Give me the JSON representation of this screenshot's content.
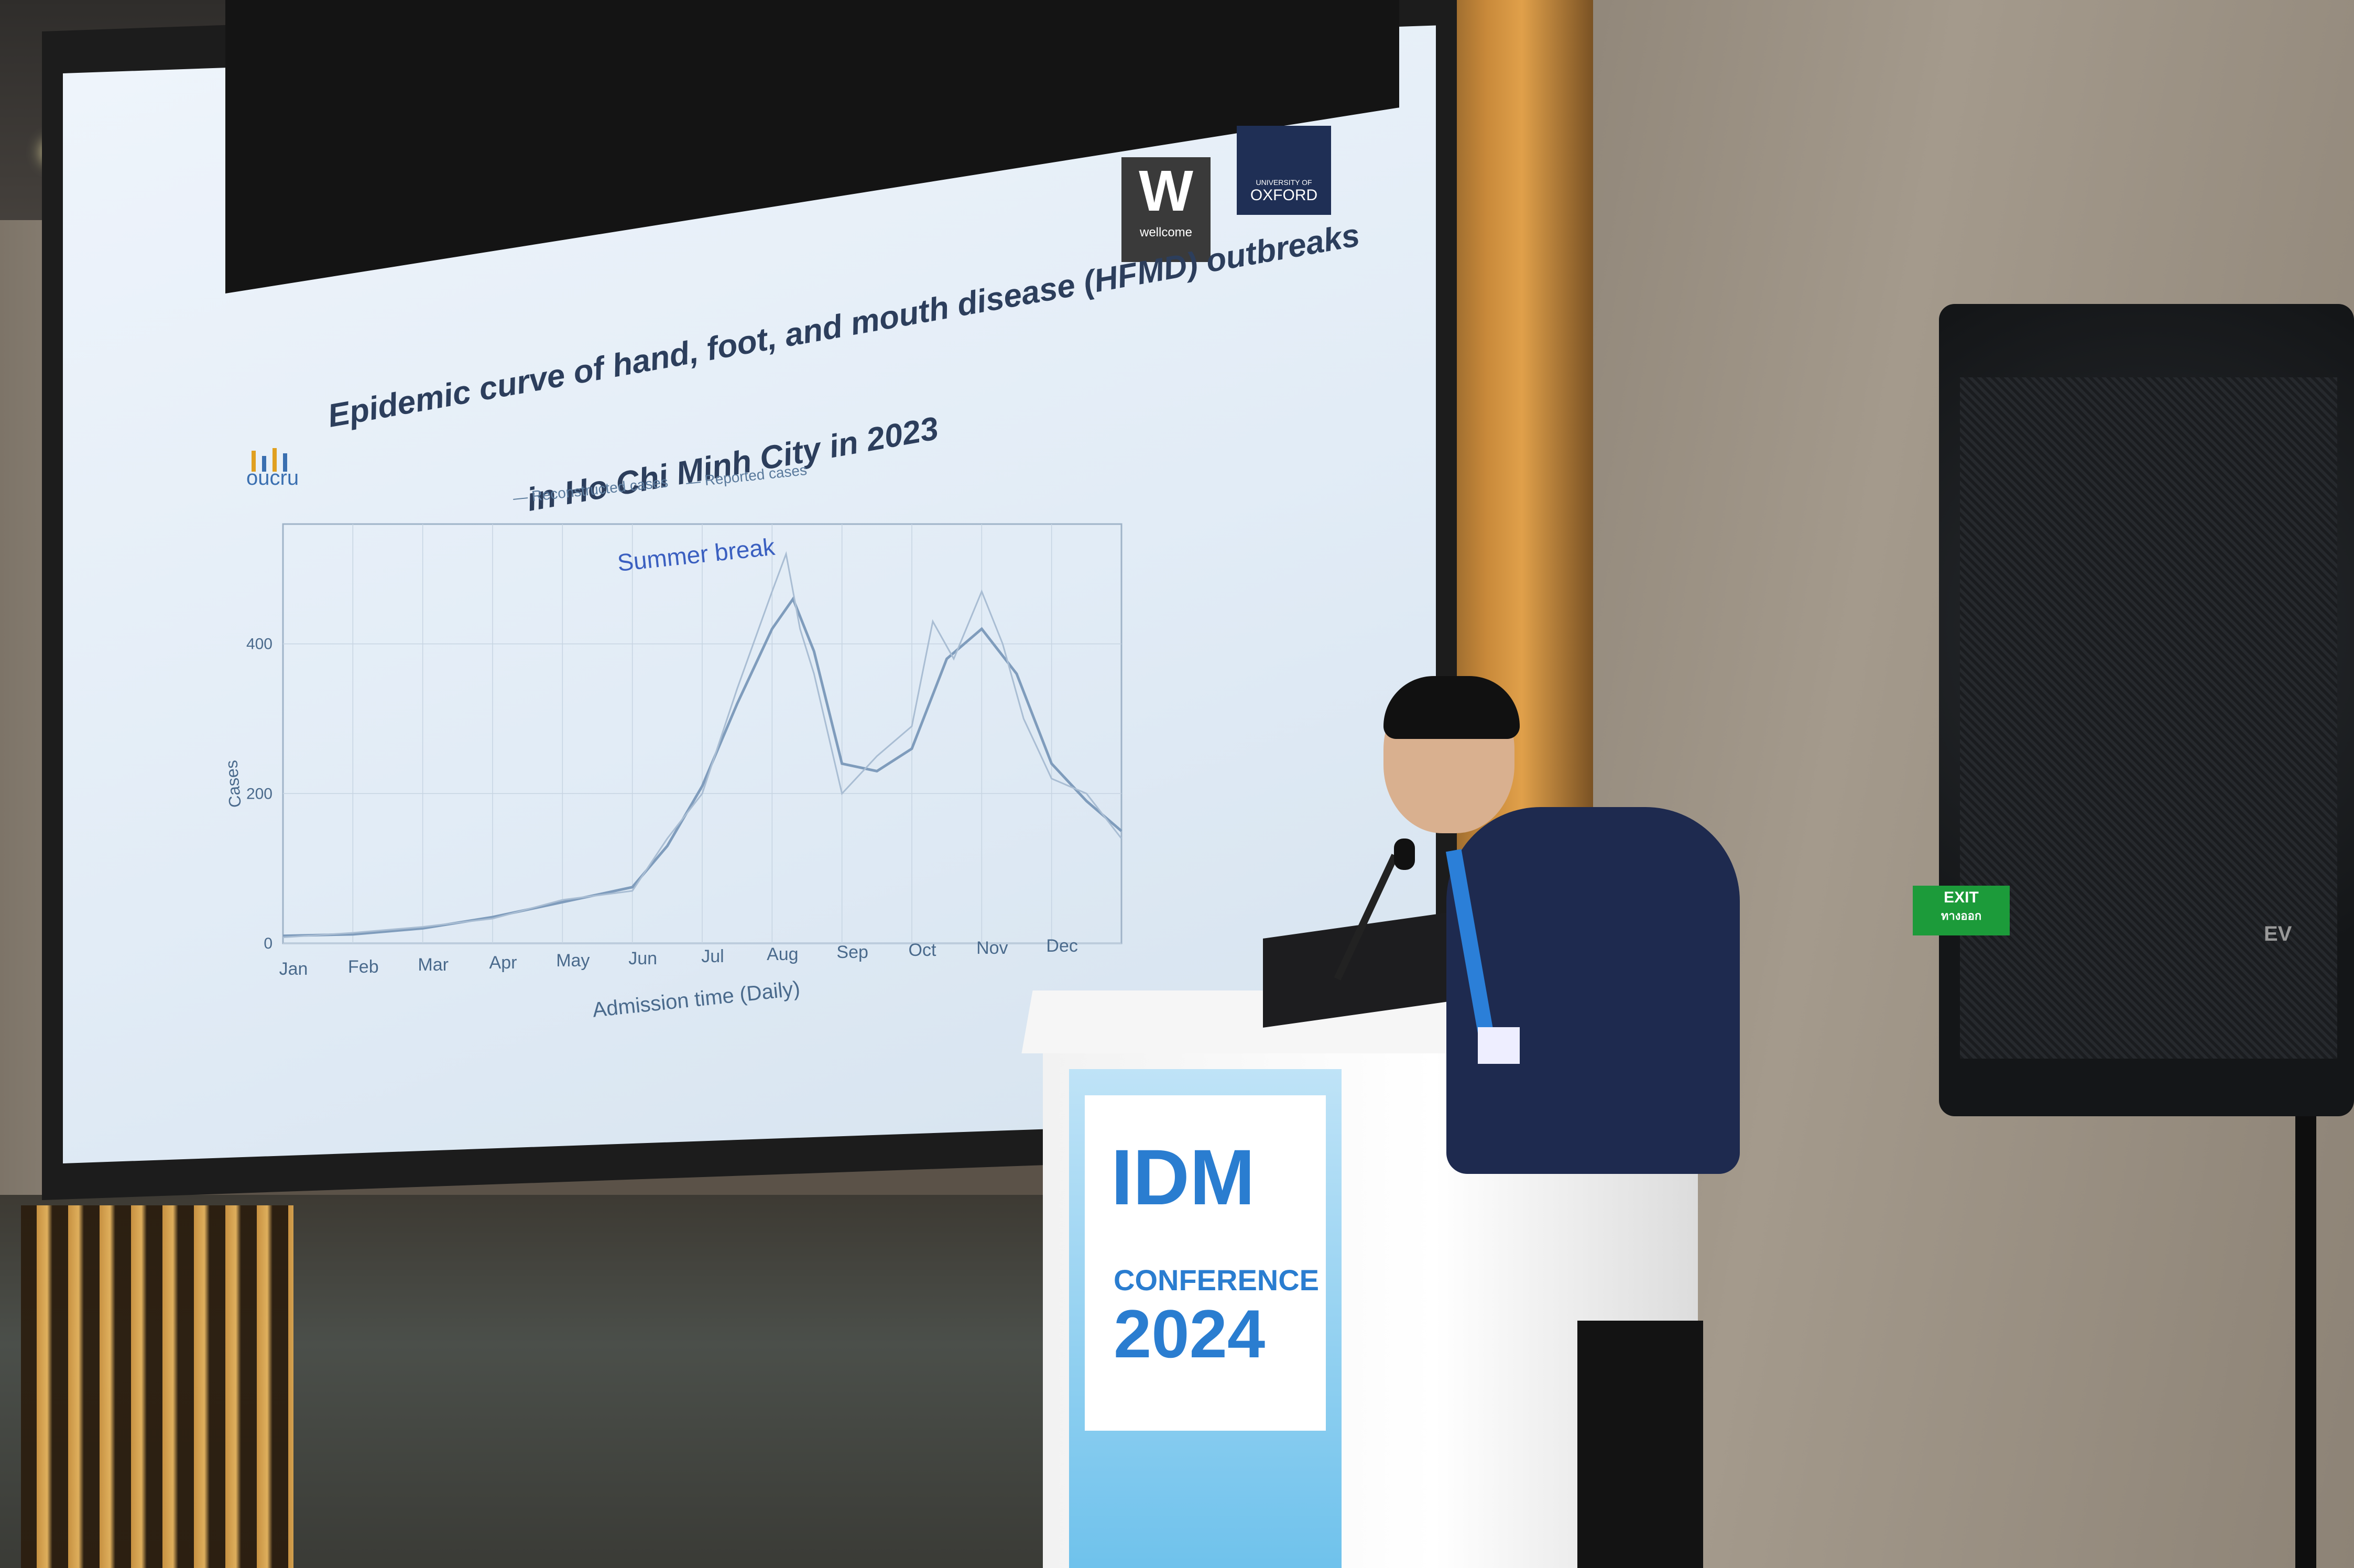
{
  "slide": {
    "title_line1": "Epidemic curve of hand, foot, and mouth disease (HFMD) outbreaks",
    "title_line2": "in Ho Chi Minh City in 2023",
    "org_logo_text": "oucru",
    "wellcome_letter": "W",
    "wellcome_word": "wellcome",
    "oxford_small": "UNIVERSITY OF",
    "oxford_word": "OXFORD"
  },
  "chart_data": {
    "type": "line",
    "title": "",
    "xlabel": "Admission time (Daily)",
    "ylabel": "Cases",
    "x_ticks": [
      "Jan",
      "Feb",
      "Mar",
      "Apr",
      "May",
      "Jun",
      "Jul",
      "Aug",
      "Sep",
      "Oct",
      "Nov",
      "Dec"
    ],
    "y_ticks": [
      0,
      200,
      400
    ],
    "ylim": [
      0,
      560
    ],
    "annotation": "Summer break",
    "legend": [
      "Reconstructed cases",
      "Reported cases"
    ],
    "legend_position": "top",
    "grid": true,
    "series": [
      {
        "name": "Reconstructed cases",
        "x_month": [
          0,
          1,
          2,
          3,
          4,
          5,
          5.5,
          6,
          6.5,
          7,
          7.3,
          7.6,
          8,
          8.5,
          9,
          9.5,
          10,
          10.5,
          11,
          11.5,
          12
        ],
        "values": [
          10,
          12,
          20,
          35,
          55,
          75,
          130,
          210,
          320,
          420,
          460,
          390,
          240,
          230,
          260,
          380,
          420,
          360,
          240,
          190,
          150
        ]
      },
      {
        "name": "Reported cases",
        "x_month": [
          0,
          1,
          2,
          3,
          4,
          5,
          5.5,
          6,
          6.5,
          7,
          7.2,
          7.4,
          7.6,
          8,
          8.5,
          9,
          9.3,
          9.6,
          10,
          10.3,
          10.6,
          11,
          11.5,
          12
        ],
        "values": [
          8,
          14,
          22,
          33,
          58,
          70,
          140,
          200,
          340,
          470,
          520,
          420,
          360,
          200,
          250,
          290,
          430,
          380,
          470,
          400,
          300,
          220,
          200,
          140
        ]
      }
    ]
  },
  "podium": {
    "title": "IDM",
    "subtitle": "CONFERENCE",
    "year": "2024"
  },
  "exit_sign": {
    "line1": "EXIT",
    "line2": "ทางออก"
  },
  "pa_logo": "EV",
  "colors": {
    "slide_bg": "#e6eef7",
    "chart_line": "#8aa6c4",
    "title": "#2c3e5c",
    "idm_blue": "#2a7dd0",
    "exit_green": "#1c9b3a"
  }
}
